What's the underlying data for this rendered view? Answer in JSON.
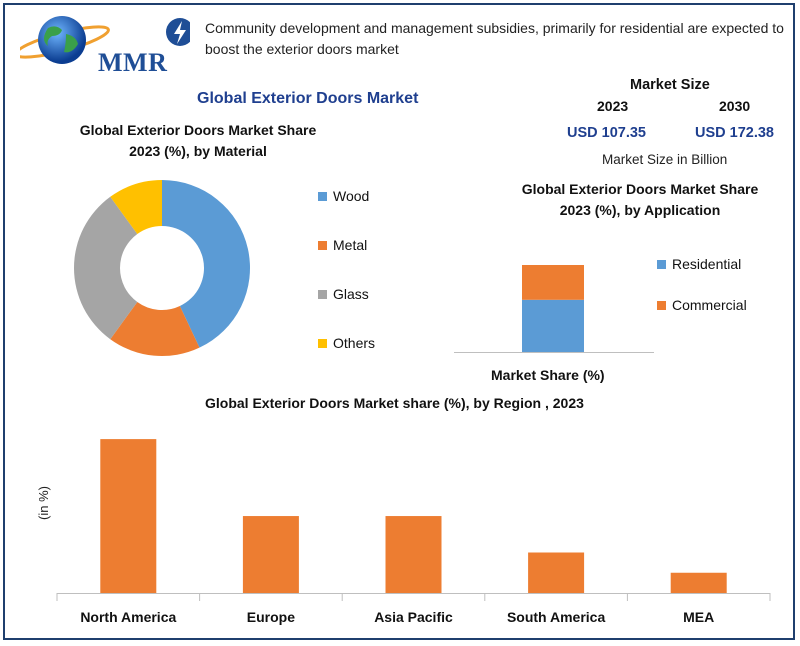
{
  "brand": {
    "name": "MMR"
  },
  "headline": "Community development and management subsidies, primarily for residential are expected to boost the exterior doors market",
  "main_title": "Global Exterior Doors Market",
  "market_size": {
    "title": "Market Size",
    "year_start": "2023",
    "year_end": "2030",
    "value_start": "USD 107.35",
    "value_end": "USD 172.38",
    "unit_note": "Market Size in Billion"
  },
  "colors": {
    "blue": "#5b9bd5",
    "orange": "#ed7d31",
    "gray": "#a5a5a5",
    "yellow": "#ffc000",
    "brand": "#1f3f8f"
  },
  "chart_data": [
    {
      "type": "pie",
      "title": "Global Exterior Doors Market Share 2023 (%), by Material",
      "categories": [
        "Wood",
        "Metal",
        "Glass",
        "Others"
      ],
      "values": [
        43,
        17,
        30,
        10
      ]
    },
    {
      "type": "bar",
      "stacked": true,
      "title": "Global Exterior Doors Market Share 2023 (%), by Application",
      "xlabel": "Market Share (%)",
      "series": [
        {
          "name": "Residential",
          "values": [
            60
          ]
        },
        {
          "name": "Commercial",
          "values": [
            40
          ]
        }
      ]
    },
    {
      "type": "bar",
      "title": "Global Exterior Doors Market share (%), by Region , 2023",
      "ylabel": "(in %)",
      "categories": [
        "North America",
        "Europe",
        "Asia Pacific",
        "South America",
        "MEA"
      ],
      "values": [
        38,
        19,
        19,
        10,
        5
      ],
      "ylim": [
        0,
        40
      ]
    }
  ]
}
